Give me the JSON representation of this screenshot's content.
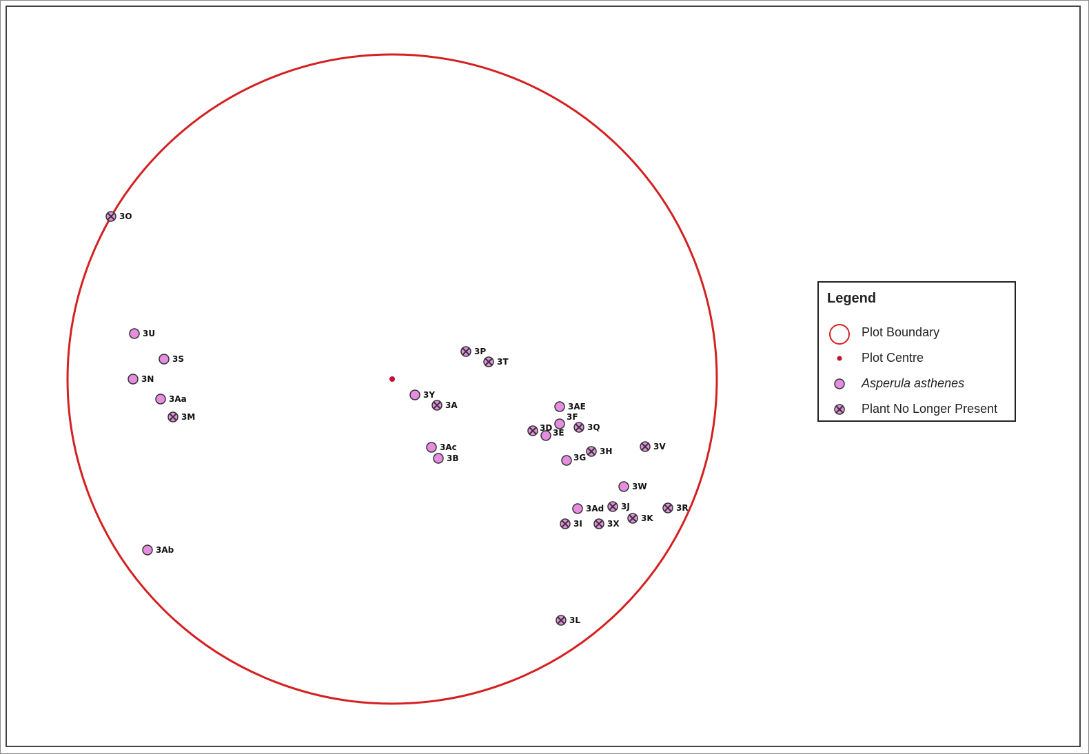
{
  "colors": {
    "boundary": "#d42020",
    "centre": "#c8102e",
    "plant_fill": "#e58ee0",
    "outline": "#333333"
  },
  "plot": {
    "boundary_label": "Plot Boundary",
    "centre_label": "Plot Centre"
  },
  "legend": {
    "title": "Legend",
    "items": [
      {
        "symbol": "plot-boundary-icon",
        "label": "Plot Boundary"
      },
      {
        "symbol": "plot-centre-icon",
        "label": "Plot Centre"
      },
      {
        "symbol": "asperula-plant-icon",
        "label": "Asperula asthenes"
      },
      {
        "symbol": "absent-plant-icon",
        "label": "Plant No Longer Present"
      }
    ]
  },
  "plants": [
    {
      "id": "3O",
      "status": "absent"
    },
    {
      "id": "3U",
      "status": "present"
    },
    {
      "id": "3S",
      "status": "present"
    },
    {
      "id": "3N",
      "status": "present"
    },
    {
      "id": "3Aa",
      "status": "present"
    },
    {
      "id": "3M",
      "status": "absent"
    },
    {
      "id": "3Ab",
      "status": "present"
    },
    {
      "id": "3P",
      "status": "absent"
    },
    {
      "id": "3T",
      "status": "absent"
    },
    {
      "id": "3Y",
      "status": "present"
    },
    {
      "id": "3A",
      "status": "absent"
    },
    {
      "id": "3Ac",
      "status": "present"
    },
    {
      "id": "3B",
      "status": "present"
    },
    {
      "id": "3AE",
      "status": "present"
    },
    {
      "id": "3F",
      "status": "present"
    },
    {
      "id": "3Q",
      "status": "absent"
    },
    {
      "id": "3D",
      "status": "absent"
    },
    {
      "id": "3E",
      "status": "present"
    },
    {
      "id": "3H",
      "status": "absent"
    },
    {
      "id": "3V",
      "status": "absent"
    },
    {
      "id": "3G",
      "status": "present"
    },
    {
      "id": "3W",
      "status": "present"
    },
    {
      "id": "3Ad",
      "status": "present"
    },
    {
      "id": "3J",
      "status": "absent"
    },
    {
      "id": "3R",
      "status": "absent"
    },
    {
      "id": "3K",
      "status": "absent"
    },
    {
      "id": "3I",
      "status": "absent"
    },
    {
      "id": "3X",
      "status": "absent"
    },
    {
      "id": "3L",
      "status": "absent"
    }
  ]
}
